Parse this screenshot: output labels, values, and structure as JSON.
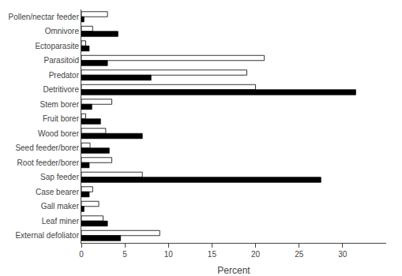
{
  "chart_data": {
    "type": "bar",
    "orientation": "horizontal",
    "categories": [
      "Pollen/nectar feeder",
      "Omnivore",
      "Ectoparasite",
      "Parasitoid",
      "Predator",
      "Detritivore",
      "Stem borer",
      "Fruit borer",
      "Wood borer",
      "Seed feeder/borer",
      "Root feeder/borer",
      "Sap feeder",
      "Case bearer",
      "Gall maker",
      "Leaf miner",
      "External defoliator"
    ],
    "series": [
      {
        "color": "#ffffff",
        "values": [
          3.0,
          1.3,
          0.5,
          21.0,
          19.0,
          20.0,
          3.5,
          0.5,
          2.8,
          1.0,
          3.5,
          7.0,
          1.3,
          2.0,
          2.5,
          9.0
        ]
      },
      {
        "color": "#000000",
        "values": [
          0.3,
          4.2,
          0.9,
          3.0,
          8.0,
          31.5,
          1.2,
          2.2,
          7.0,
          3.2,
          0.9,
          27.5,
          0.9,
          0.3,
          3.0,
          4.5
        ]
      }
    ],
    "xlabel": "Percent",
    "xlim": [
      0,
      35
    ],
    "xticks": [
      0,
      5,
      10,
      15,
      20,
      25,
      30
    ],
    "grid": false
  }
}
